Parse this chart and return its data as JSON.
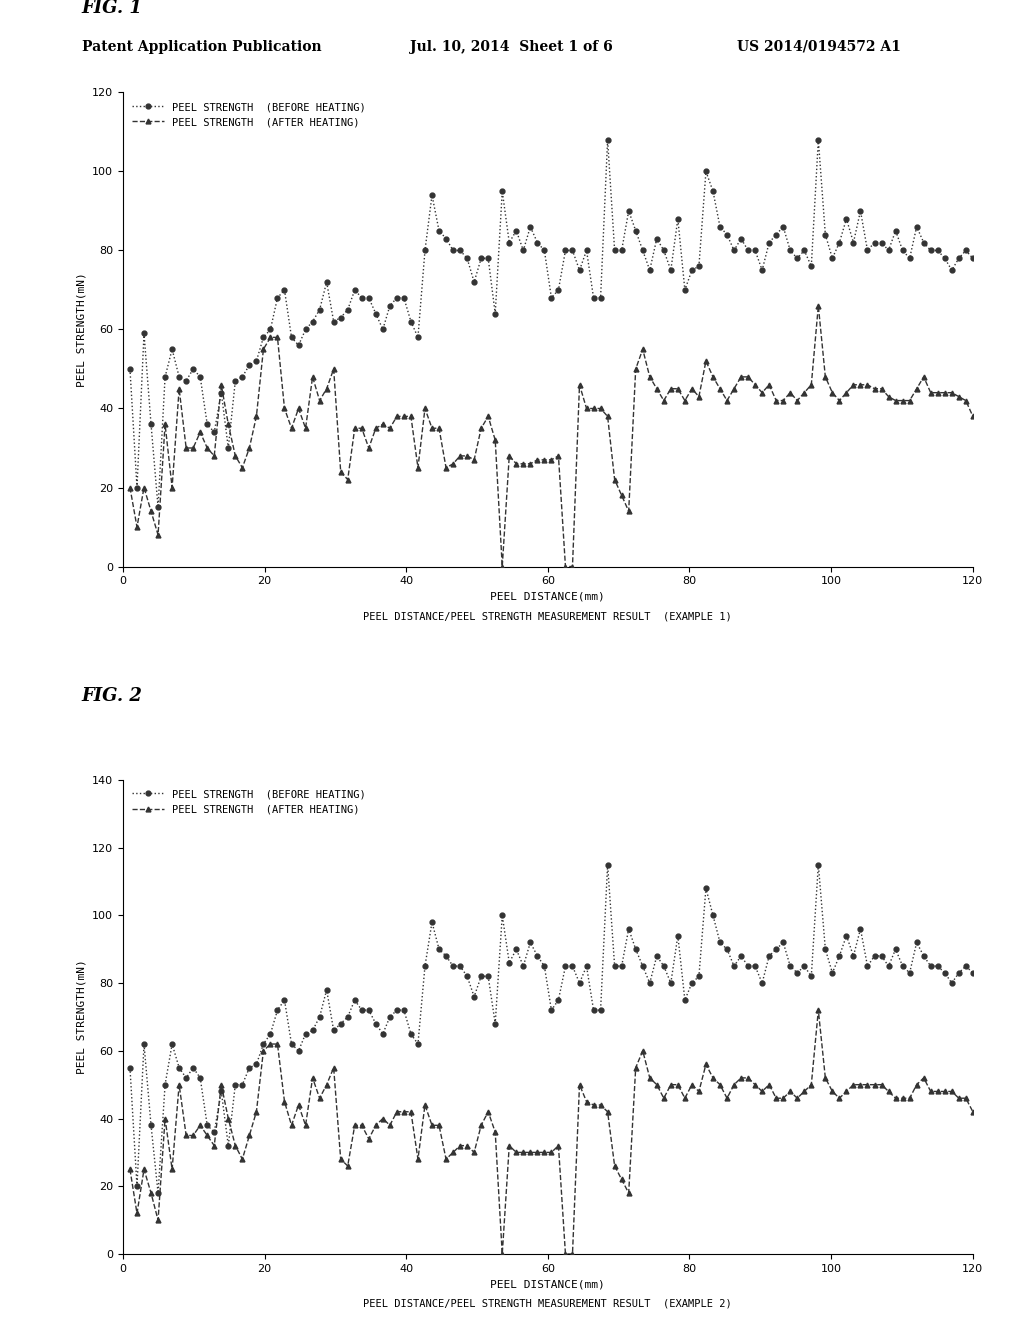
{
  "header_left": "Patent Application Publication",
  "header_mid": "Jul. 10, 2014  Sheet 1 of 6",
  "header_right": "US 2014/0194572 A1",
  "fig1_label": "FIG. 1",
  "fig2_label": "FIG. 2",
  "fig1_title": "PEEL DISTANCE/PEEL STRENGTH MEASUREMENT RESULT  (EXAMPLE 1)",
  "fig2_title": "PEEL DISTANCE/PEEL STRENGTH MEASUREMENT RESULT  (EXAMPLE 2)",
  "xlabel": "PEEL DISTANCE(mm)",
  "ylabel": "PEEL STRENGTH(mN)",
  "legend_before": "PEEL STRENGTH  (BEFORE HEATING)",
  "legend_after": "PEEL STRENGTH  (AFTER HEATING)",
  "fig1_ylim": [
    0,
    120
  ],
  "fig1_yticks": [
    0,
    20,
    40,
    60,
    80,
    100,
    120
  ],
  "fig2_ylim": [
    0,
    140
  ],
  "fig2_yticks": [
    0,
    20,
    40,
    60,
    80,
    100,
    120,
    140
  ],
  "xlim": [
    0,
    120
  ],
  "xticks": [
    0,
    20,
    40,
    60,
    80,
    100,
    120
  ],
  "fig1_before": [
    50,
    20,
    59,
    36,
    15,
    48,
    55,
    48,
    47,
    50,
    48,
    36,
    34,
    44,
    30,
    47,
    48,
    51,
    52,
    58,
    60,
    68,
    70,
    58,
    56,
    60,
    62,
    65,
    72,
    62,
    63,
    65,
    70,
    68,
    68,
    64,
    60,
    66,
    68,
    68,
    62,
    58,
    80,
    94,
    85,
    83,
    80,
    80,
    78,
    72,
    78,
    78,
    64,
    95,
    82,
    85,
    80,
    86,
    82,
    80,
    68,
    70,
    80,
    80,
    75,
    80,
    68,
    68,
    108,
    80,
    80,
    90,
    85,
    80,
    75,
    83,
    80,
    75,
    88,
    70,
    75,
    76,
    100,
    95,
    86,
    84,
    80,
    83,
    80,
    80,
    75,
    82,
    84,
    86,
    80,
    78,
    80,
    76,
    108,
    84,
    78,
    82,
    88,
    82,
    90,
    80,
    82,
    82,
    80,
    85,
    80,
    78,
    86,
    82,
    80,
    80,
    78,
    75,
    78,
    80,
    78,
    80
  ],
  "fig1_after": [
    20,
    10,
    20,
    14,
    8,
    36,
    20,
    45,
    30,
    30,
    34,
    30,
    28,
    46,
    36,
    28,
    25,
    30,
    38,
    55,
    58,
    58,
    40,
    35,
    40,
    35,
    48,
    42,
    45,
    50,
    24,
    22,
    35,
    35,
    30,
    35,
    36,
    35,
    38,
    38,
    38,
    25,
    40,
    35,
    35,
    25,
    26,
    28,
    28,
    27,
    35,
    38,
    32,
    0,
    28,
    26,
    26,
    26,
    27,
    27,
    27,
    28,
    0,
    0,
    46,
    40,
    40,
    40,
    38,
    22,
    18,
    14,
    50,
    55,
    48,
    45,
    42,
    45,
    45,
    42,
    45,
    43,
    52,
    48,
    45,
    42,
    45,
    48,
    48,
    46,
    44,
    46,
    42,
    42,
    44,
    42,
    44,
    46,
    66,
    48,
    44,
    42,
    44,
    46,
    46,
    46,
    45,
    45,
    43,
    42,
    42,
    42,
    45,
    48,
    44,
    44,
    44,
    44,
    43,
    42,
    38,
    36
  ],
  "fig2_before": [
    55,
    20,
    62,
    38,
    18,
    50,
    62,
    55,
    52,
    55,
    52,
    38,
    36,
    48,
    32,
    50,
    50,
    55,
    56,
    62,
    65,
    72,
    75,
    62,
    60,
    65,
    66,
    70,
    78,
    66,
    68,
    70,
    75,
    72,
    72,
    68,
    65,
    70,
    72,
    72,
    65,
    62,
    85,
    98,
    90,
    88,
    85,
    85,
    82,
    76,
    82,
    82,
    68,
    100,
    86,
    90,
    85,
    92,
    88,
    85,
    72,
    75,
    85,
    85,
    80,
    85,
    72,
    72,
    115,
    85,
    85,
    96,
    90,
    85,
    80,
    88,
    85,
    80,
    94,
    75,
    80,
    82,
    108,
    100,
    92,
    90,
    85,
    88,
    85,
    85,
    80,
    88,
    90,
    92,
    85,
    83,
    85,
    82,
    115,
    90,
    83,
    88,
    94,
    88,
    96,
    85,
    88,
    88,
    85,
    90,
    85,
    83,
    92,
    88,
    85,
    85,
    83,
    80,
    83,
    85,
    83,
    85
  ],
  "fig2_after": [
    25,
    12,
    25,
    18,
    10,
    40,
    25,
    50,
    35,
    35,
    38,
    35,
    32,
    50,
    40,
    32,
    28,
    35,
    42,
    60,
    62,
    62,
    45,
    38,
    44,
    38,
    52,
    46,
    50,
    55,
    28,
    26,
    38,
    38,
    34,
    38,
    40,
    38,
    42,
    42,
    42,
    28,
    44,
    38,
    38,
    28,
    30,
    32,
    32,
    30,
    38,
    42,
    36,
    0,
    32,
    30,
    30,
    30,
    30,
    30,
    30,
    32,
    0,
    0,
    50,
    45,
    44,
    44,
    42,
    26,
    22,
    18,
    55,
    60,
    52,
    50,
    46,
    50,
    50,
    46,
    50,
    48,
    56,
    52,
    50,
    46,
    50,
    52,
    52,
    50,
    48,
    50,
    46,
    46,
    48,
    46,
    48,
    50,
    72,
    52,
    48,
    46,
    48,
    50,
    50,
    50,
    50,
    50,
    48,
    46,
    46,
    46,
    50,
    52,
    48,
    48,
    48,
    48,
    46,
    46,
    42,
    40
  ],
  "background_color": "#ffffff",
  "line_color": "#000000"
}
